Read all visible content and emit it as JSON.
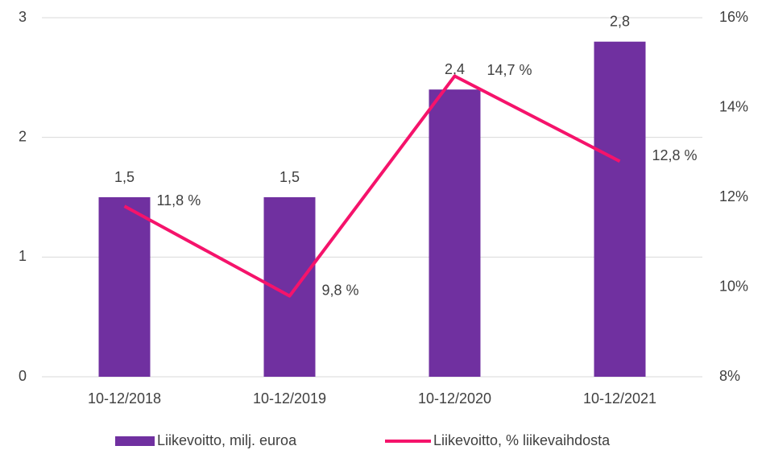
{
  "chart_data": {
    "type": "bar",
    "categories": [
      "10-12/2018",
      "10-12/2019",
      "10-12/2020",
      "10-12/2021"
    ],
    "series": [
      {
        "name": "Liikevoitto, milj. euroa",
        "color": "#7030a0",
        "type": "bar",
        "values": [
          1.5,
          1.5,
          2.4,
          2.8
        ],
        "value_labels": [
          "1,5",
          "1,5",
          "2,4",
          "2,8"
        ]
      },
      {
        "name": "Liikevoitto, % liikevaihdosta",
        "color": "#f5136b",
        "type": "line",
        "axis": "y2",
        "values": [
          11.8,
          9.8,
          14.7,
          12.8
        ],
        "value_labels": [
          "11,8 %",
          "9,8 %",
          "14,7 %",
          "12,8 %"
        ]
      }
    ],
    "ylim": [
      0,
      3
    ],
    "yticks": [
      0,
      1,
      2,
      3
    ],
    "y2lim": [
      8,
      16
    ],
    "y2ticks": [
      {
        "value": 8,
        "label": "8%"
      },
      {
        "value": 10,
        "label": "10%"
      },
      {
        "value": 12,
        "label": "12%"
      },
      {
        "value": 14,
        "label": "14%"
      },
      {
        "value": 16,
        "label": "16%"
      }
    ],
    "grid": true,
    "legend": "bottom"
  }
}
